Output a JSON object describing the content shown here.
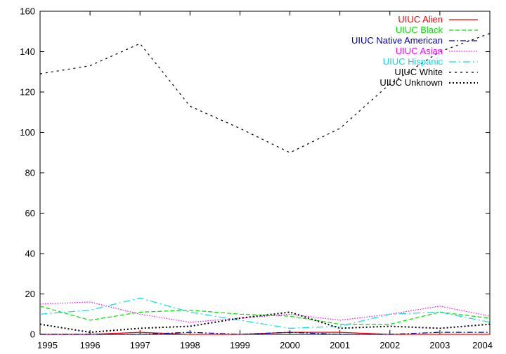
{
  "chart_data": {
    "type": "line",
    "title": "",
    "xlabel": "",
    "ylabel": "",
    "xlim": [
      1995,
      2004
    ],
    "ylim": [
      0,
      160
    ],
    "x_ticks": [
      "1995",
      "1996",
      "1997",
      "1998",
      "1999",
      "2000",
      "2001",
      "2002",
      "2003",
      "2004"
    ],
    "y_ticks": [
      "0",
      "20",
      "40",
      "60",
      "80",
      "100",
      "120",
      "140",
      "160"
    ],
    "grid": false,
    "legend_position": "top-right",
    "x": [
      1995,
      1996,
      1997,
      1998,
      1999,
      2000,
      2001,
      2002,
      2003,
      2004
    ],
    "series": [
      {
        "name": "UIUC Alien",
        "color": "#ff0000",
        "dash": "solid",
        "values": [
          0,
          0,
          1,
          0,
          0,
          1,
          1,
          0,
          0,
          0
        ]
      },
      {
        "name": "UIUC Black",
        "color": "#00e000",
        "dash": "dashed",
        "values": [
          14,
          7,
          11,
          12,
          10,
          9,
          5,
          5,
          11,
          8
        ]
      },
      {
        "name": "UIUC Native American",
        "color": "#0000b0",
        "dash": "dashdot",
        "values": [
          0,
          0,
          0,
          1,
          0,
          1,
          0,
          0,
          1,
          1
        ]
      },
      {
        "name": "UIUC Asian",
        "color": "#ff00ff",
        "dash": "dotted",
        "values": [
          15,
          16,
          10,
          6,
          8,
          10,
          7,
          10,
          14,
          9
        ]
      },
      {
        "name": "UIUC Hispanic",
        "color": "#00e0e0",
        "dash": "dashdot-long",
        "values": [
          10,
          12,
          18,
          11,
          7,
          3,
          4,
          10,
          11,
          6
        ]
      },
      {
        "name": "UIUC White",
        "color": "#000000",
        "dash": "fine-dashed",
        "values": [
          129,
          133,
          144,
          113,
          102,
          90,
          102,
          124,
          140,
          149
        ]
      },
      {
        "name": "UIUC Unknown",
        "color": "#000000",
        "dash": "dotted-heavy",
        "values": [
          5,
          1,
          3,
          4,
          8,
          11,
          3,
          4,
          3,
          5
        ]
      }
    ]
  }
}
